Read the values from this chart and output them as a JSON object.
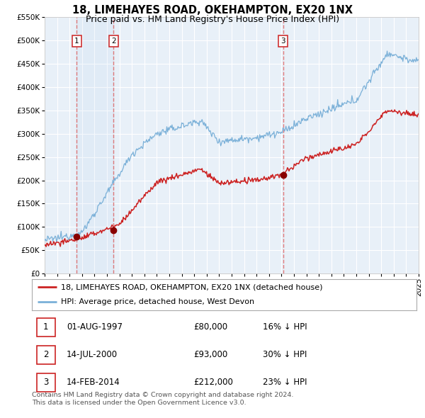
{
  "title": "18, LIMEHAYES ROAD, OKEHAMPTON, EX20 1NX",
  "subtitle": "Price paid vs. HM Land Registry's House Price Index (HPI)",
  "ylim": [
    0,
    550000
  ],
  "yticks": [
    0,
    50000,
    100000,
    150000,
    200000,
    250000,
    300000,
    350000,
    400000,
    450000,
    500000,
    550000
  ],
  "xlim": [
    1995,
    2025
  ],
  "bg_color": "#e8f0f8",
  "grid_color": "#ffffff",
  "red_line_color": "#cc2222",
  "blue_line_color": "#7ab0d8",
  "sale_marker_color": "#880000",
  "vline_color": "#dd6666",
  "legend_label_red": "18, LIMEHAYES ROAD, OKEHAMPTON, EX20 1NX (detached house)",
  "legend_label_blue": "HPI: Average price, detached house, West Devon",
  "table_rows": [
    {
      "num": "1",
      "date": "01-AUG-1997",
      "price": "£80,000",
      "hpi": "16% ↓ HPI"
    },
    {
      "num": "2",
      "date": "14-JUL-2000",
      "price": "£93,000",
      "hpi": "30% ↓ HPI"
    },
    {
      "num": "3",
      "date": "14-FEB-2014",
      "price": "£212,000",
      "hpi": "23% ↓ HPI"
    }
  ],
  "sale_dates": [
    1997.58,
    2000.53,
    2014.12
  ],
  "sale_prices": [
    80000,
    93000,
    212000
  ],
  "sale_labels": [
    "1",
    "2",
    "3"
  ],
  "vline_dates": [
    1997.58,
    2000.53,
    2014.12
  ],
  "footer": "Contains HM Land Registry data © Crown copyright and database right 2024.\nThis data is licensed under the Open Government Licence v3.0.",
  "title_fontsize": 10.5,
  "subtitle_fontsize": 9,
  "tick_fontsize": 7.5,
  "legend_fontsize": 8,
  "table_fontsize": 8.5,
  "footer_fontsize": 6.8
}
